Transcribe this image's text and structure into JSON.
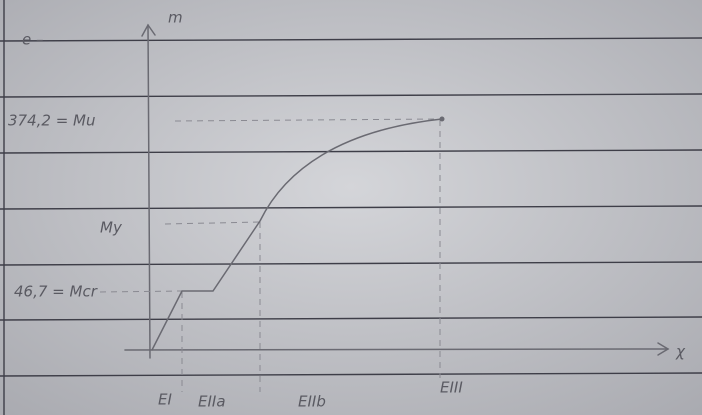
{
  "margin_note": "e –",
  "axes": {
    "y_label": "m",
    "x_label": "χ"
  },
  "levels": [
    {
      "label": "374,2 = Mu"
    },
    {
      "label": "My"
    },
    {
      "label": "46,7 = Mcr"
    }
  ],
  "stages": [
    {
      "label": "EI"
    },
    {
      "label": "EIIa"
    },
    {
      "label": "EIIb"
    },
    {
      "label": "EIII"
    }
  ]
}
